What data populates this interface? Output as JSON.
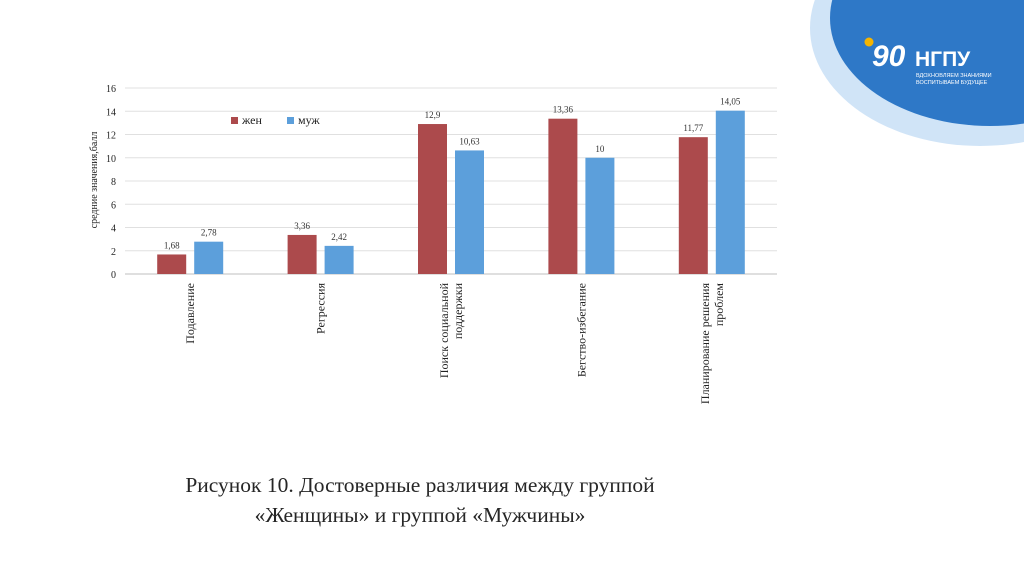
{
  "logo": {
    "name": "НГПУ",
    "tagline_line1": "ВДОХНОВЛЯЕМ ЗНАНИЯМИ",
    "tagline_line2": "ВОСПИТЫВАЕМ БУДУЩЕЕ",
    "colors": {
      "dark": "#2e78c7",
      "light": "#a9cdf0",
      "accent": "#f5b400"
    }
  },
  "caption": {
    "line1": "Рисунок 10. Достоверные различия между группой",
    "line2": "«Женщины» и группой «Мужчины»"
  },
  "chart_data": {
    "type": "bar",
    "title": "",
    "xlabel": "",
    "ylabel": "средние значения,балл",
    "ylim": [
      0,
      16
    ],
    "yticks": [
      0,
      2,
      4,
      6,
      8,
      10,
      12,
      14,
      16
    ],
    "grid": true,
    "legend_position": "top-left",
    "categories": [
      [
        "Подавление"
      ],
      [
        "Регрессия"
      ],
      [
        "Поиск социальной",
        "поддержки"
      ],
      [
        "Бегство-избегание"
      ],
      [
        "Планирование решения",
        "проблем"
      ]
    ],
    "series": [
      {
        "name": "жен",
        "color": "#ac4a4c",
        "values": [
          1.68,
          3.36,
          12.9,
          13.36,
          11.77
        ],
        "labels": [
          "1,68",
          "3,36",
          "12,9",
          "13,36",
          "11,77"
        ]
      },
      {
        "name": "муж",
        "color": "#5c9fdb",
        "values": [
          2.78,
          2.42,
          10.63,
          10,
          14.05
        ],
        "labels": [
          "2,78",
          "2,42",
          "10,63",
          "10",
          "14,05"
        ]
      }
    ]
  }
}
